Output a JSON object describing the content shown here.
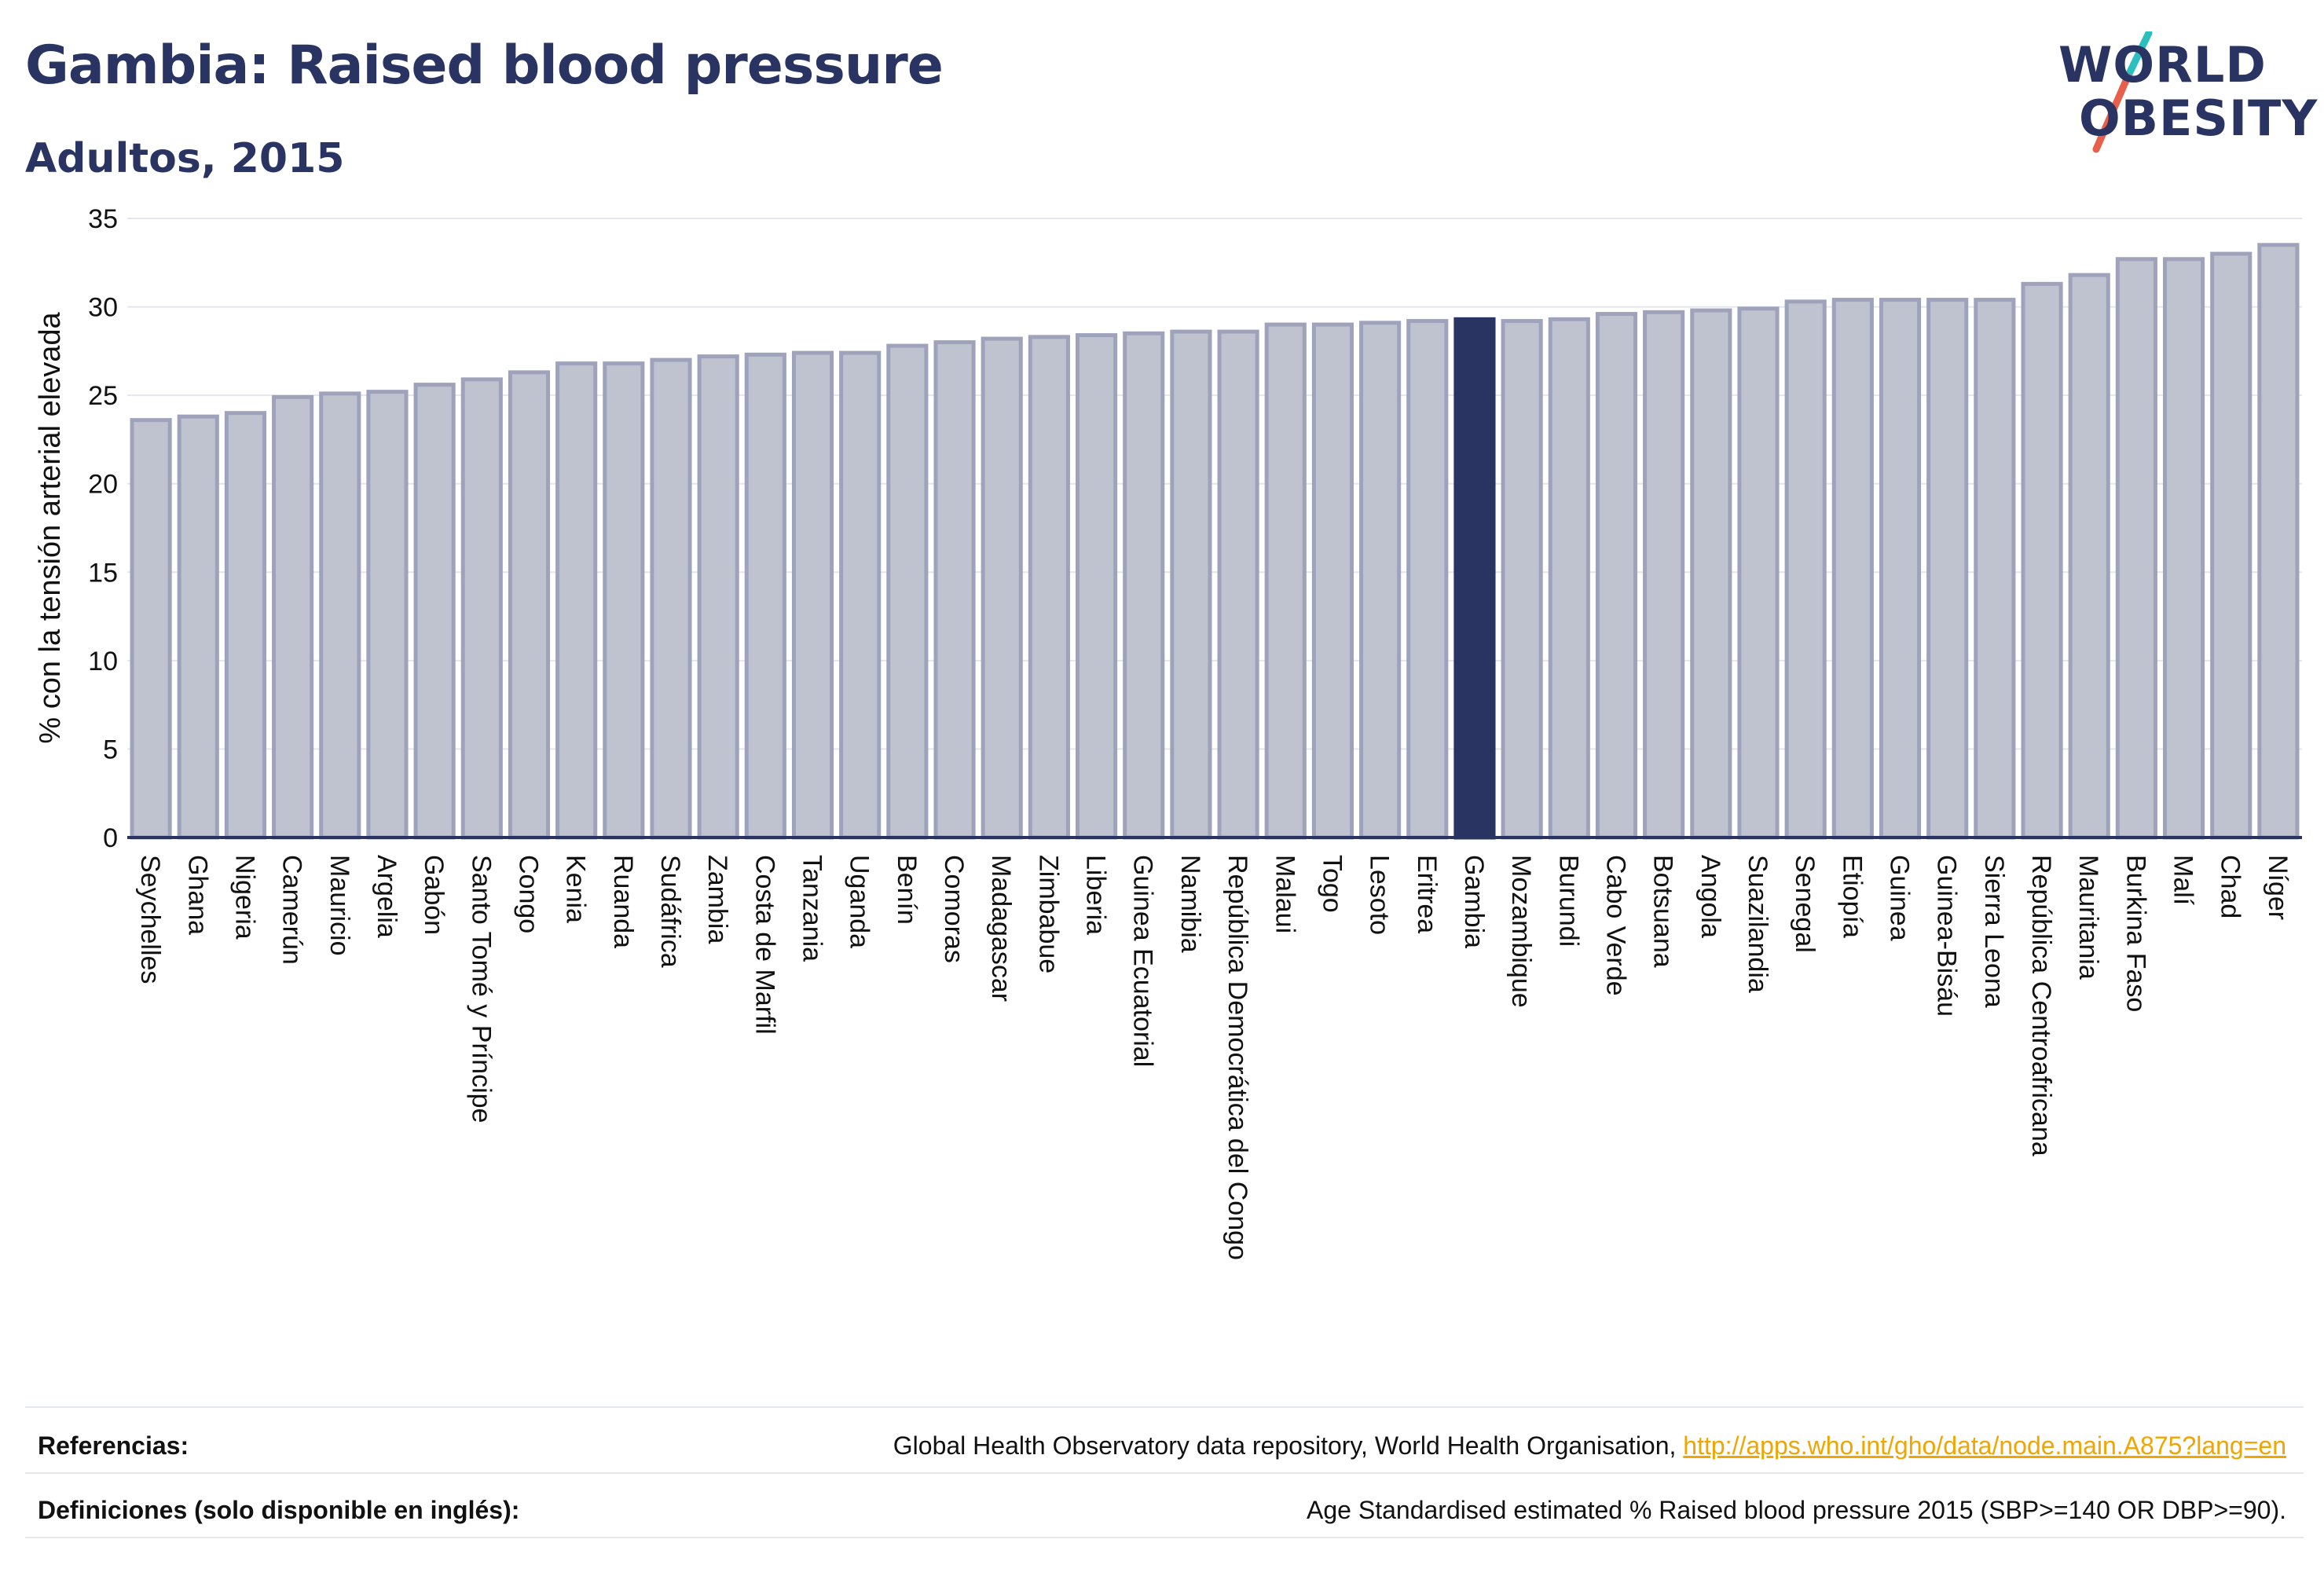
{
  "header": {
    "title": "Gambia: Raised blood pressure",
    "subtitle": "Adultos, 2015"
  },
  "logo": {
    "line1": "WORLD",
    "line2": "OBESITY",
    "accent_colors": [
      "#2bbfbf",
      "#e8604c"
    ]
  },
  "colors": {
    "bar_default": "#bfc2cf",
    "bar_border": "#9ea3bb",
    "bar_highlight": "#2a3462",
    "grid": "#e4e6ee",
    "axis_text": "#111111"
  },
  "chart_data": {
    "type": "bar",
    "title": "Gambia: Raised blood pressure",
    "subtitle": "Adultos, 2015",
    "xlabel": "",
    "ylabel": "% con la tensión arterial elevada",
    "ylim": [
      0,
      35
    ],
    "yticks": [
      0,
      5,
      10,
      15,
      20,
      25,
      30,
      35
    ],
    "grid": true,
    "highlight": "Gambia",
    "categories": [
      "Seychelles",
      "Ghana",
      "Nigeria",
      "Camerún",
      "Mauricio",
      "Argelia",
      "Gabón",
      "Santo Tomé y Príncipe",
      "Congo",
      "Kenia",
      "Ruanda",
      "Sudáfrica",
      "Zambia",
      "Costa de Marfil",
      "Tanzania",
      "Uganda",
      "Benín",
      "Comoras",
      "Madagascar",
      "Zimbabue",
      "Liberia",
      "Guinea Ecuatorial",
      "Namibia",
      "República Democrática del Congo",
      "Malaui",
      "Togo",
      "Lesoto",
      "Eritrea",
      "Gambia",
      "Mozambique",
      "Burundi",
      "Cabo Verde",
      "Botsuana",
      "Angola",
      "Suazilandia",
      "Senegal",
      "Etiopía",
      "Guinea",
      "Guinea-Bisáu",
      "Sierra Leona",
      "República Centroafricana",
      "Mauritania",
      "Burkina Faso",
      "Malí",
      "Chad",
      "Níger"
    ],
    "values": [
      23.6,
      23.8,
      24.0,
      24.9,
      25.1,
      25.2,
      25.6,
      25.9,
      26.3,
      26.8,
      26.8,
      27.0,
      27.2,
      27.3,
      27.4,
      27.4,
      27.8,
      28.0,
      28.2,
      28.3,
      28.4,
      28.5,
      28.6,
      28.6,
      29.0,
      29.0,
      29.1,
      29.2,
      29.3,
      29.2,
      29.3,
      29.6,
      29.7,
      29.8,
      29.9,
      30.3,
      30.4,
      30.4,
      30.4,
      30.4,
      31.3,
      31.8,
      32.7,
      32.7,
      33.0,
      33.5
    ]
  },
  "footer": {
    "references_label": "Referencias:",
    "references_text": "Global Health Observatory data repository, World Health Organisation,",
    "references_link": "http://apps.who.int/gho/data/node.main.A875?lang=en",
    "definitions_label": "Definiciones (solo disponible en inglés):",
    "definitions_text": "Age Standardised estimated % Raised blood pressure 2015 (SBP>=140 OR DBP>=90)."
  }
}
